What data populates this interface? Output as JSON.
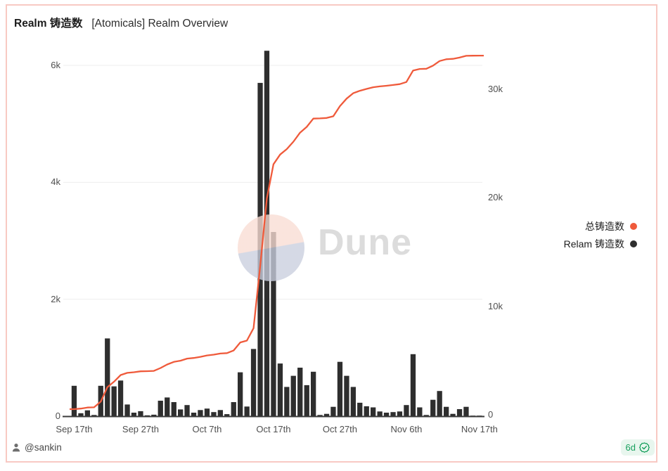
{
  "card": {
    "title_bold": "Realm 铸造数",
    "title_rest": "[Atomicals] Realm Overview",
    "border_color": "#f8c9c3"
  },
  "watermark": {
    "text": "Dune",
    "pink": "#f9dcd3",
    "blue": "#c9cede",
    "text_color": "#dcdcdc"
  },
  "legend": [
    {
      "label": "总铸造数",
      "color": "#ef5a3b"
    },
    {
      "label": "Relam 铸造数",
      "color": "#2e2e2e"
    }
  ],
  "footer": {
    "author": "@sankin",
    "badge_text": "6d",
    "badge_color": "#17a05d",
    "badge_bg": "#e8f6ee"
  },
  "chart_data": {
    "type": "bar",
    "title": "Realm 铸造数 [Atomicals] Realm Overview",
    "x_range": [
      "Sep 17th",
      "Nov 17th"
    ],
    "x_tick_labels": [
      "Sep 17th",
      "Sep 27th",
      "Oct 7th",
      "Oct 17th",
      "Oct 27th",
      "Nov 6th",
      "Nov 17th"
    ],
    "x_tick_days": [
      0,
      10,
      20,
      30,
      40,
      50,
      61
    ],
    "grid": "horizontal",
    "legend_position": "right",
    "left_axis": {
      "tick_labels": [
        "0",
        "2k",
        "4k",
        "6k"
      ],
      "tick_values": [
        0,
        2000,
        4000,
        6000
      ],
      "max": 6000
    },
    "right_axis": {
      "tick_labels": [
        "0",
        "10k",
        "20k",
        "30k"
      ],
      "tick_values": [
        0,
        10000,
        20000,
        30000
      ],
      "max": 30000
    },
    "series": [
      {
        "name": "Relam 铸造数",
        "type": "bar",
        "axis": "left",
        "color": "#2e2e2e",
        "values": [
          520,
          50,
          100,
          20,
          520,
          1330,
          510,
          610,
          200,
          60,
          85,
          15,
          25,
          265,
          320,
          240,
          115,
          190,
          60,
          105,
          130,
          70,
          105,
          35,
          240,
          750,
          165,
          1150,
          5700,
          6250,
          3150,
          900,
          500,
          690,
          830,
          530,
          760,
          20,
          40,
          160,
          930,
          690,
          500,
          230,
          170,
          150,
          80,
          60,
          70,
          80,
          190,
          1060,
          150,
          20,
          280,
          430,
          160,
          40,
          120,
          160,
          10,
          10
        ]
      },
      {
        "name": "总铸造数",
        "type": "line",
        "axis": "right",
        "color": "#ef5a3b",
        "note": "cumulative total mints",
        "values": [
          520,
          570,
          670,
          690,
          1210,
          2540,
          3050,
          3660,
          3860,
          3920,
          4005,
          4020,
          4045,
          4310,
          4630,
          4870,
          4985,
          5175,
          5235,
          5340,
          5470,
          5540,
          5645,
          5680,
          5920,
          6670,
          6835,
          7985,
          13685,
          19935,
          23085,
          23985,
          24485,
          25175,
          26005,
          26535,
          27295,
          27315,
          27355,
          27515,
          28445,
          29135,
          29635,
          29865,
          30035,
          30185,
          30265,
          30325,
          30395,
          30475,
          30665,
          31725,
          31875,
          31895,
          32175,
          32605,
          32765,
          32805,
          32925,
          33085,
          33095,
          33105
        ]
      }
    ]
  }
}
